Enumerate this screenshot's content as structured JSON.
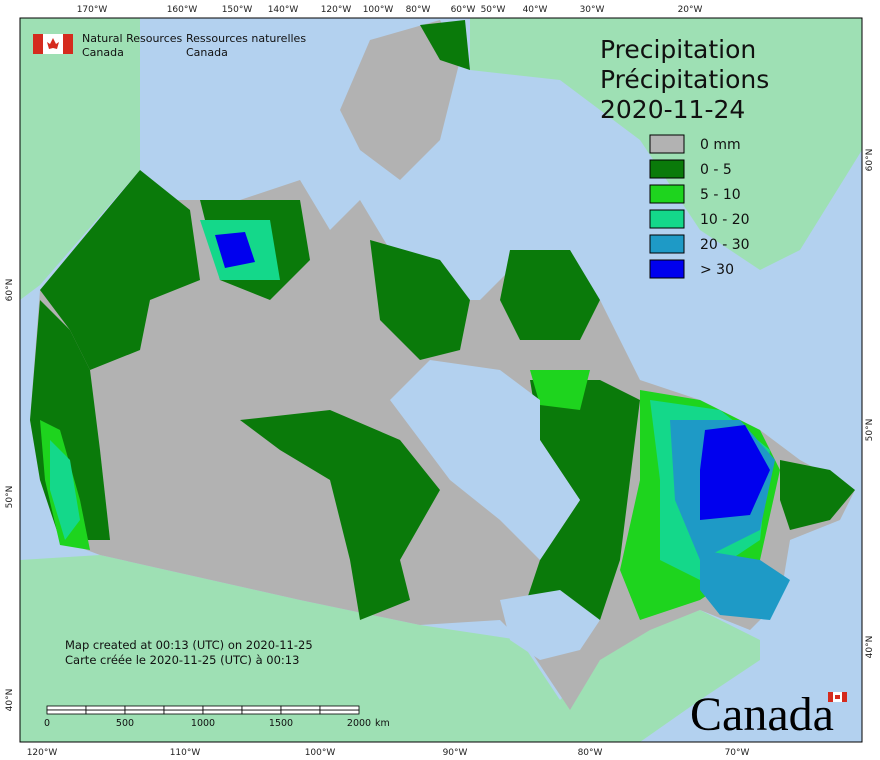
{
  "header": {
    "org_en": [
      "Natural Resources",
      "Canada"
    ],
    "org_fr": [
      "Ressources naturelles",
      "Canada"
    ]
  },
  "title": {
    "en": "Precipitation",
    "fr": "Précipitations",
    "date": "2020-11-24"
  },
  "legend": [
    {
      "label": "0 mm",
      "color": "#b2b2b2"
    },
    {
      "label": "0 - 5",
      "color": "#0a7a0a"
    },
    {
      "label": "5 - 10",
      "color": "#1ed41e"
    },
    {
      "label": "10 - 20",
      "color": "#14d88a"
    },
    {
      "label": "20 - 30",
      "color": "#1e9ac6"
    },
    {
      "label": "> 30",
      "color": "#0000ee"
    }
  ],
  "graticule": {
    "top": [
      "170°W",
      "160°W",
      "150°W",
      "140°W",
      "120°W",
      "100°W",
      "80°W",
      "60°W",
      "50°W",
      "40°W",
      "30°W",
      "20°W"
    ],
    "bottom": [
      "120°W",
      "110°W",
      "100°W",
      "90°W",
      "80°W",
      "70°W"
    ],
    "left": [
      "60°N",
      "50°N",
      "40°N"
    ],
    "right": [
      "60°N",
      "50°N",
      "40°N"
    ]
  },
  "scale": {
    "ticks": [
      "0",
      "500",
      "1000",
      "1500",
      "2000"
    ],
    "unit": "km"
  },
  "footer": {
    "created_en": "Map created at 00:13 (UTC) on 2020-11-25",
    "created_fr": "Carte créée le 2020-11-25 (UTC) à 00:13",
    "wordmark": "Canada"
  }
}
